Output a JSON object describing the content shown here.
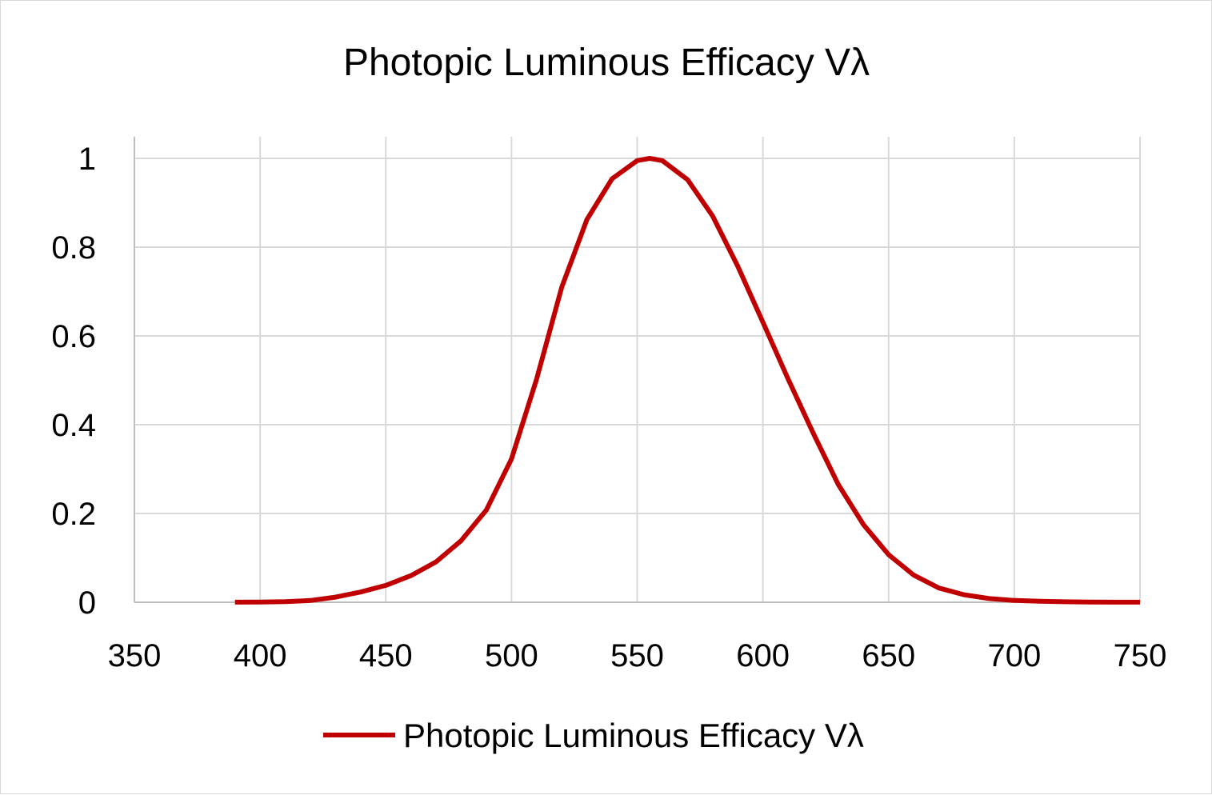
{
  "chart_data": {
    "type": "line",
    "title": "Photopic Luminous Efficacy Vλ",
    "xlabel": "",
    "ylabel": "",
    "xlim": [
      350,
      750
    ],
    "ylim": [
      0,
      1
    ],
    "x_ticks": [
      "350",
      "400",
      "450",
      "500",
      "550",
      "600",
      "650",
      "700",
      "750"
    ],
    "y_ticks": [
      "0",
      "0.2",
      "0.4",
      "0.6",
      "0.8",
      "1"
    ],
    "grid": true,
    "legend_position": "bottom",
    "colors": {
      "series": "#c00000",
      "grid": "#d9d9d9",
      "axis": "#bfbfbf"
    },
    "series": [
      {
        "name": "Photopic Luminous Efficacy Vλ",
        "x": [
          390,
          400,
          410,
          420,
          430,
          440,
          450,
          460,
          470,
          480,
          490,
          500,
          510,
          520,
          530,
          540,
          550,
          555,
          560,
          570,
          580,
          590,
          600,
          610,
          620,
          630,
          640,
          650,
          660,
          670,
          680,
          690,
          700,
          710,
          720,
          730,
          740,
          750
        ],
        "y": [
          0.0001,
          0.0004,
          0.0012,
          0.004,
          0.0116,
          0.023,
          0.038,
          0.06,
          0.091,
          0.139,
          0.208,
          0.323,
          0.503,
          0.71,
          0.862,
          0.954,
          0.995,
          1.0,
          0.995,
          0.952,
          0.87,
          0.757,
          0.631,
          0.503,
          0.381,
          0.265,
          0.175,
          0.107,
          0.061,
          0.032,
          0.017,
          0.0082,
          0.0041,
          0.0021,
          0.00105,
          0.00052,
          0.00025,
          0.00012
        ]
      }
    ]
  }
}
